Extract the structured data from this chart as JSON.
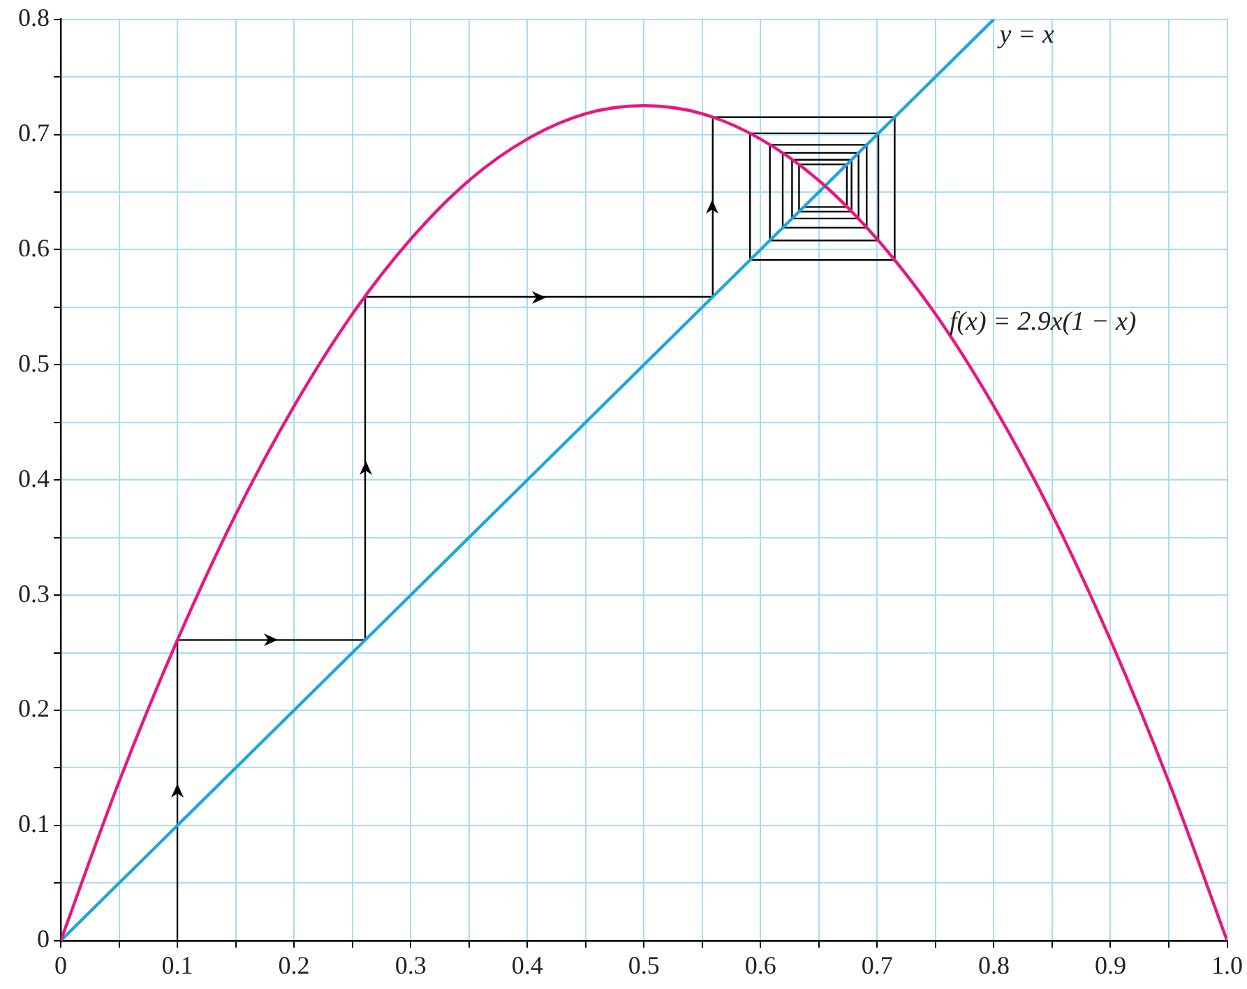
{
  "chart_data": {
    "type": "line",
    "xlim": [
      0,
      1
    ],
    "ylim": [
      0,
      0.8
    ],
    "xticks": [
      0,
      {
        "value": 0.05,
        "label": null
      },
      0.1,
      {
        "value": 0.15,
        "label": null
      },
      0.2,
      {
        "value": 0.25,
        "label": null
      },
      0.3,
      {
        "value": 0.35,
        "label": null
      },
      0.4,
      {
        "value": 0.45,
        "label": null
      },
      0.5,
      {
        "value": 0.55,
        "label": null
      },
      0.6,
      {
        "value": 0.65,
        "label": null
      },
      0.7,
      {
        "value": 0.75,
        "label": null
      },
      0.8,
      {
        "value": 0.85,
        "label": null
      },
      0.9,
      {
        "value": 0.95,
        "label": null
      },
      {
        "value": 1,
        "label": "1.0"
      }
    ],
    "yticks": [
      0,
      {
        "value": 0.05,
        "label": null
      },
      0.1,
      {
        "value": 0.15,
        "label": null
      },
      0.2,
      {
        "value": 0.25,
        "label": null
      },
      0.3,
      {
        "value": 0.35,
        "label": null
      },
      0.4,
      {
        "value": 0.45,
        "label": null
      },
      0.5,
      {
        "value": 0.55,
        "label": null
      },
      0.6,
      {
        "value": 0.65,
        "label": null
      },
      0.7,
      {
        "value": 0.75,
        "label": null
      },
      0.8
    ],
    "grid": true,
    "legend": false,
    "marker": "none",
    "line_style": "solid",
    "series": [
      {
        "color": "#e8177f",
        "x": [
          0,
          0.05,
          0.1,
          0.15,
          0.2,
          0.25,
          0.3,
          0.35,
          0.4,
          0.45,
          0.5,
          0.55,
          0.6,
          0.65,
          0.7,
          0.75,
          0.8,
          0.85,
          0.9,
          0.95,
          1
        ],
        "values": [
          0,
          0.138,
          0.261,
          0.37,
          0.464,
          0.544,
          0.609,
          0.66,
          0.696,
          0.718,
          0.725,
          0.718,
          0.696,
          0.66,
          0.609,
          0.544,
          0.464,
          0.37,
          0.261,
          0.138,
          0
        ]
      },
      {
        "color": "#1aa7dd",
        "x": [
          0,
          0.8
        ],
        "values": [
          0,
          0.8
        ]
      },
      {
        "color": "#000000",
        "x": [
          0.1,
          0.1,
          0.261,
          0.261,
          0.559,
          0.559,
          0.715,
          0.715,
          0.591,
          0.591,
          0.701,
          0.701,
          0.608,
          0.608,
          0.691,
          0.691,
          0.619,
          0.619,
          0.684,
          0.684,
          0.627,
          0.627,
          0.678,
          0.678,
          0.633,
          0.633,
          0.674,
          0.674,
          0.637
        ],
        "values": [
          0,
          0.261,
          0.261,
          0.559,
          0.559,
          0.715,
          0.715,
          0.591,
          0.591,
          0.701,
          0.701,
          0.608,
          0.608,
          0.691,
          0.691,
          0.619,
          0.619,
          0.684,
          0.684,
          0.627,
          0.627,
          0.678,
          0.678,
          0.633,
          0.633,
          0.674,
          0.674,
          0.637,
          0.637
        ]
      }
    ],
    "annotations": [
      {
        "text": "y = x",
        "x": 0.8,
        "y": 0.8
      },
      {
        "text": "f(x) = 2.9x(1 − x)",
        "x": 0.75,
        "y": 0.544
      }
    ]
  }
}
